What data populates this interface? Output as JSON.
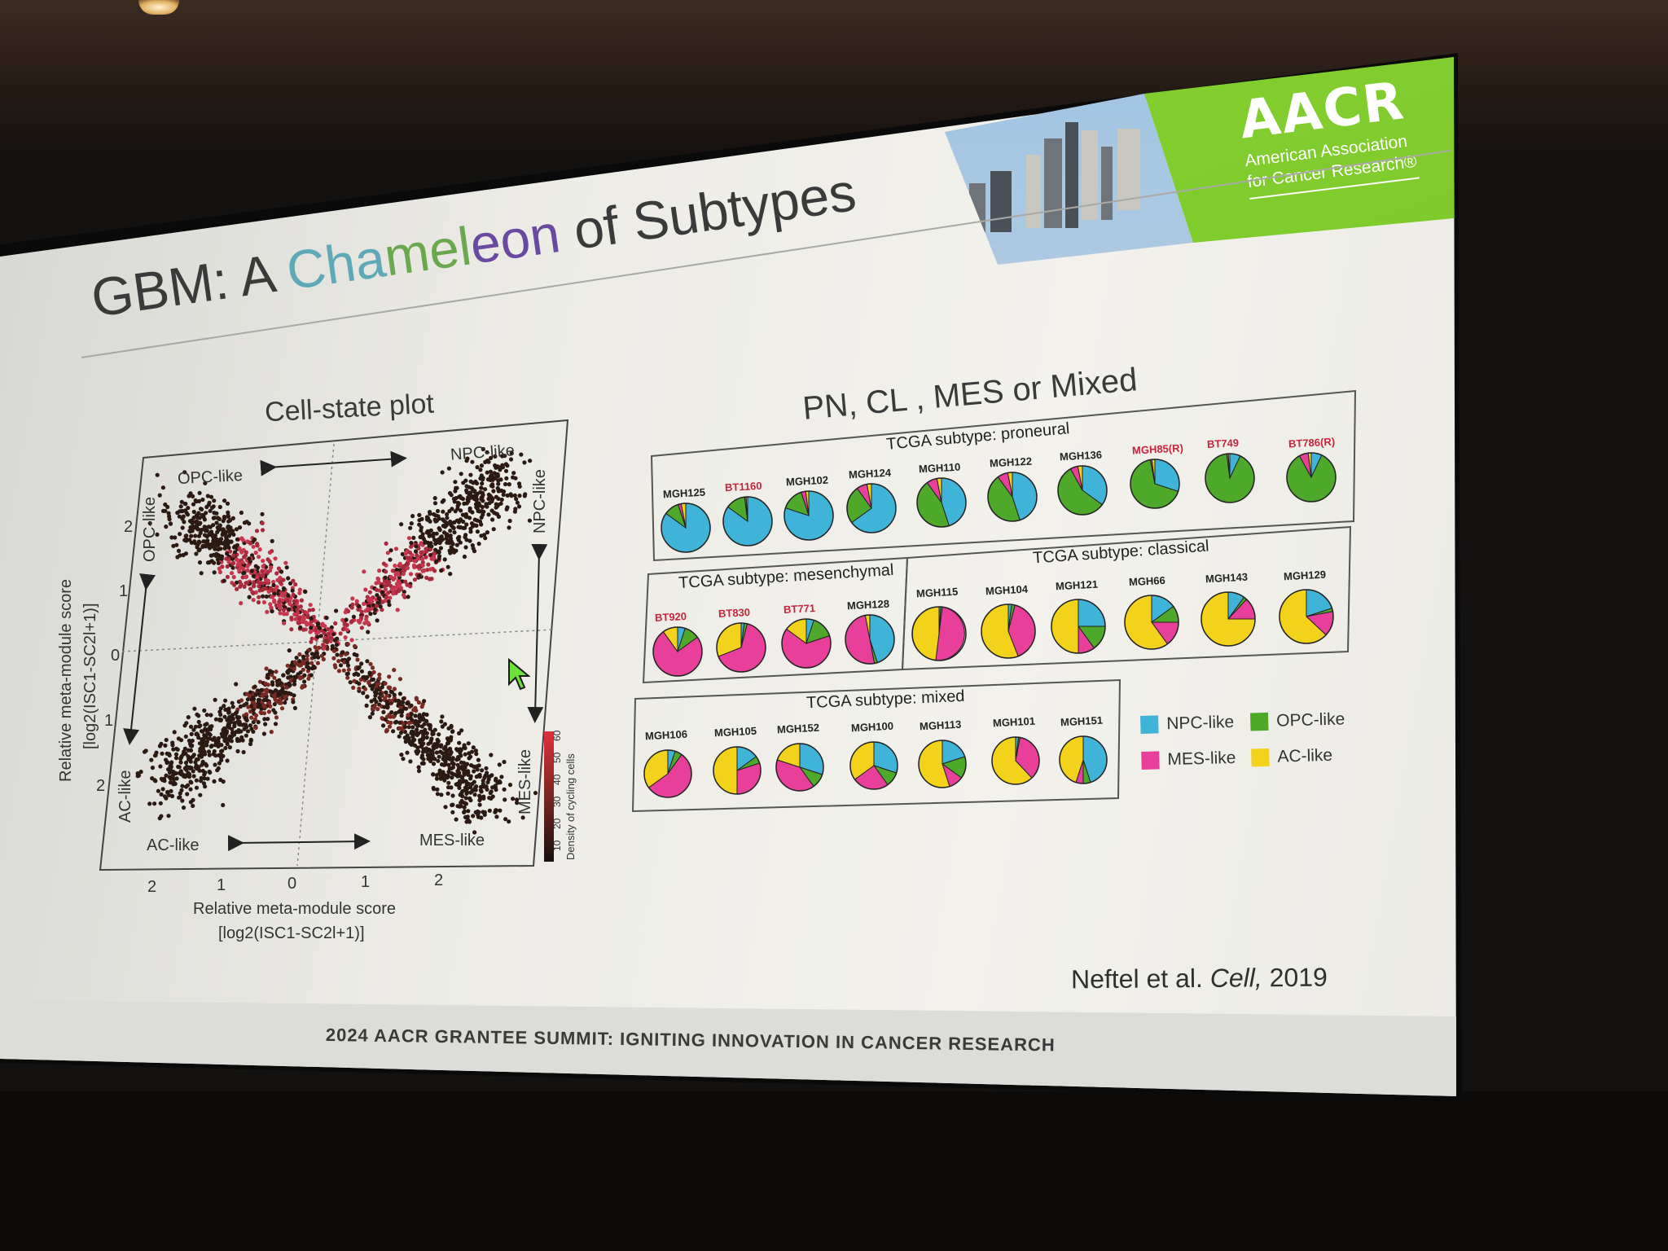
{
  "slide": {
    "title_prefix": "GBM: A ",
    "title_cha": "Cha",
    "title_mel": "mel",
    "title_eon": "eon",
    "title_suffix": " of Subtypes",
    "citation_prefix": "Neftel et al. ",
    "citation_journal": "Cell,",
    "citation_year": " 2019",
    "footer": "2024 AACR GRANTEE SUMMIT: IGNITING INNOVATION IN CANCER RESEARCH",
    "logo": {
      "wordmark": "AACR",
      "line1": "American Association",
      "line2": "for Cancer Research®"
    }
  },
  "cell_state_plot": {
    "title": "Cell-state plot",
    "quadrant_labels": {
      "top_left": "OPC-like",
      "top_right": "NPC-like",
      "bottom_left": "AC-like",
      "bottom_right": "MES-like",
      "left_top": "OPC-like",
      "left_bottom": "AC-like",
      "right_top": "NPC-like",
      "right_bottom": "MES-like"
    },
    "xlabel_line1": "Relative meta-module score",
    "xlabel_line2": "[log2(ISC1-SC2l+1)]",
    "ylabel_line1": "Relative meta-module score",
    "ylabel_line2": "[log2(ISC1-SC2l+1)]",
    "x_ticks": [
      "2",
      "1",
      "0",
      "1",
      "2"
    ],
    "y_ticks": [
      "2",
      "1",
      "0",
      "1",
      "2"
    ],
    "colorbar_label": "Density of cycling cells",
    "colorbar_ticks": [
      "10",
      "20",
      "30",
      "40",
      "50",
      "60"
    ]
  },
  "pies": {
    "title": "PN, CL , MES or Mixed",
    "colors": {
      "NPC": "#3fb4d8",
      "OPC": "#4ea82a",
      "MES": "#e8409a",
      "AC": "#f2d21a"
    },
    "legend": [
      {
        "label": "NPC-like",
        "color": "#3fb4d8"
      },
      {
        "label": "OPC-like",
        "color": "#4ea82a"
      },
      {
        "label": "MES-like",
        "color": "#e8409a"
      },
      {
        "label": "AC-like",
        "color": "#f2d21a"
      }
    ],
    "groups": {
      "proneural": {
        "title": "TCGA subtype: proneural",
        "samples": [
          {
            "name": "MGH125",
            "red": false,
            "frac": {
              "NPC": 0.85,
              "OPC": 0.1,
              "MES": 0.02,
              "AC": 0.03
            }
          },
          {
            "name": "BT1160",
            "red": true,
            "frac": {
              "NPC": 0.85,
              "OPC": 0.13,
              "MES": 0.01,
              "AC": 0.01
            }
          },
          {
            "name": "MGH102",
            "red": false,
            "frac": {
              "NPC": 0.8,
              "OPC": 0.15,
              "MES": 0.03,
              "AC": 0.02
            }
          },
          {
            "name": "MGH124",
            "red": false,
            "frac": {
              "NPC": 0.65,
              "OPC": 0.25,
              "MES": 0.07,
              "AC": 0.03
            }
          },
          {
            "name": "MGH110",
            "red": false,
            "frac": {
              "NPC": 0.45,
              "OPC": 0.45,
              "MES": 0.07,
              "AC": 0.03
            }
          },
          {
            "name": "MGH122",
            "red": false,
            "frac": {
              "NPC": 0.45,
              "OPC": 0.45,
              "MES": 0.07,
              "AC": 0.03
            }
          },
          {
            "name": "MGH136",
            "red": false,
            "frac": {
              "NPC": 0.35,
              "OPC": 0.57,
              "MES": 0.05,
              "AC": 0.03
            }
          },
          {
            "name": "MGH85(R)",
            "red": true,
            "frac": {
              "NPC": 0.3,
              "OPC": 0.67,
              "MES": 0.01,
              "AC": 0.02
            }
          },
          {
            "name": "BT749",
            "red": true,
            "frac": {
              "NPC": 0.07,
              "OPC": 0.91,
              "MES": 0.01,
              "AC": 0.01
            }
          },
          {
            "name": "BT786(R)",
            "red": true,
            "frac": {
              "NPC": 0.07,
              "OPC": 0.85,
              "MES": 0.06,
              "AC": 0.02
            }
          }
        ]
      },
      "mesenchymal": {
        "title": "TCGA subtype: mesenchymal",
        "samples": [
          {
            "name": "BT920",
            "red": true,
            "frac": {
              "NPC": 0.05,
              "OPC": 0.1,
              "MES": 0.75,
              "AC": 0.1
            }
          },
          {
            "name": "BT830",
            "red": true,
            "frac": {
              "NPC": 0.02,
              "OPC": 0.02,
              "MES": 0.65,
              "AC": 0.31
            }
          },
          {
            "name": "BT771",
            "red": true,
            "frac": {
              "NPC": 0.05,
              "OPC": 0.15,
              "MES": 0.65,
              "AC": 0.15
            }
          },
          {
            "name": "MGH128",
            "red": false,
            "frac": {
              "NPC": 0.45,
              "OPC": 0.02,
              "MES": 0.5,
              "AC": 0.03
            }
          }
        ]
      },
      "classical": {
        "title": "TCGA subtype: classical",
        "samples": [
          {
            "name": "MGH115",
            "red": false,
            "frac": {
              "NPC": 0.01,
              "OPC": 0.01,
              "MES": 0.5,
              "AC": 0.48
            }
          },
          {
            "name": "MGH104",
            "red": false,
            "frac": {
              "NPC": 0.02,
              "OPC": 0.02,
              "MES": 0.4,
              "AC": 0.56
            }
          },
          {
            "name": "MGH121",
            "red": false,
            "frac": {
              "NPC": 0.25,
              "OPC": 0.15,
              "MES": 0.1,
              "AC": 0.5
            }
          },
          {
            "name": "MGH66",
            "red": false,
            "frac": {
              "NPC": 0.15,
              "OPC": 0.1,
              "MES": 0.15,
              "AC": 0.6
            }
          },
          {
            "name": "MGH143",
            "red": false,
            "frac": {
              "NPC": 0.1,
              "OPC": 0.02,
              "MES": 0.13,
              "AC": 0.75
            }
          },
          {
            "name": "MGH129",
            "red": false,
            "frac": {
              "NPC": 0.2,
              "OPC": 0.02,
              "MES": 0.15,
              "AC": 0.63
            }
          }
        ]
      },
      "mixed": {
        "title": "TCGA subtype: mixed",
        "samples": [
          {
            "name": "MGH106",
            "red": false,
            "frac": {
              "NPC": 0.05,
              "OPC": 0.05,
              "MES": 0.55,
              "AC": 0.35
            }
          },
          {
            "name": "MGH105",
            "red": false,
            "frac": {
              "NPC": 0.15,
              "OPC": 0.05,
              "MES": 0.3,
              "AC": 0.5
            }
          },
          {
            "name": "MGH152",
            "red": false,
            "frac": {
              "NPC": 0.3,
              "OPC": 0.1,
              "MES": 0.4,
              "AC": 0.2
            }
          },
          {
            "name": "MGH100",
            "red": false,
            "frac": {
              "NPC": 0.3,
              "OPC": 0.1,
              "MES": 0.25,
              "AC": 0.35
            }
          },
          {
            "name": "MGH113",
            "red": false,
            "frac": {
              "NPC": 0.2,
              "OPC": 0.15,
              "MES": 0.1,
              "AC": 0.55
            }
          },
          {
            "name": "MGH101",
            "red": false,
            "frac": {
              "NPC": 0.02,
              "OPC": 0.01,
              "MES": 0.35,
              "AC": 0.62
            }
          },
          {
            "name": "MGH151",
            "red": false,
            "frac": {
              "NPC": 0.45,
              "OPC": 0.05,
              "MES": 0.05,
              "AC": 0.45
            }
          }
        ]
      }
    }
  }
}
